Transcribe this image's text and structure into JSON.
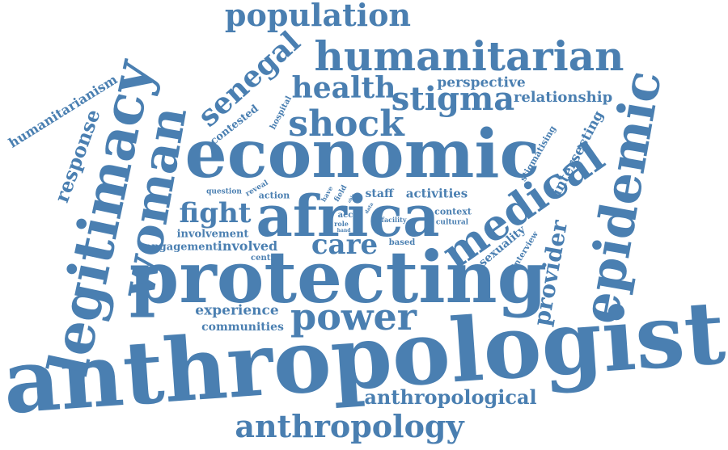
{
  "color": "#4a7fb1",
  "words": {
    "anthropologist": "anthropologist",
    "protecting": "protecting",
    "economic": "economic",
    "africa": "africa",
    "legitimacy": "legitimacy",
    "epidemic": "epidemic",
    "woman": "woman",
    "humanitarian": "humanitarian",
    "medical": "medical",
    "population": "population",
    "shock": "shock",
    "power": "power",
    "anthropology": "anthropology",
    "stigma": "stigma",
    "health": "health",
    "senegal": "senegal",
    "anthropological": "anthropological",
    "care": "care",
    "fight": "fight",
    "provider": "provider",
    "response": "response",
    "relationship": "relationship",
    "perspective": "perspective",
    "experience": "experience",
    "humanitarianism": "humanitarianism",
    "intersecting": "intersecting",
    "activities": "activities",
    "involved": "involved",
    "engagement": "engagement",
    "communities": "communities",
    "involvement": "involvement",
    "sexuality": "sexuality",
    "contested": "contested",
    "stigmatising": "stigmatising",
    "staff": "staff",
    "action": "action",
    "hospital": "hospital",
    "context": "context",
    "question": "question",
    "reveal": "reveal",
    "interview": "interview",
    "based": "based",
    "cultural": "cultural",
    "facility": "facility",
    "centre": "centre",
    "acc": "acc",
    "role": "role",
    "hand": "hand",
    "have": "have",
    "field": "field",
    "able": "able",
    "data": "data"
  }
}
